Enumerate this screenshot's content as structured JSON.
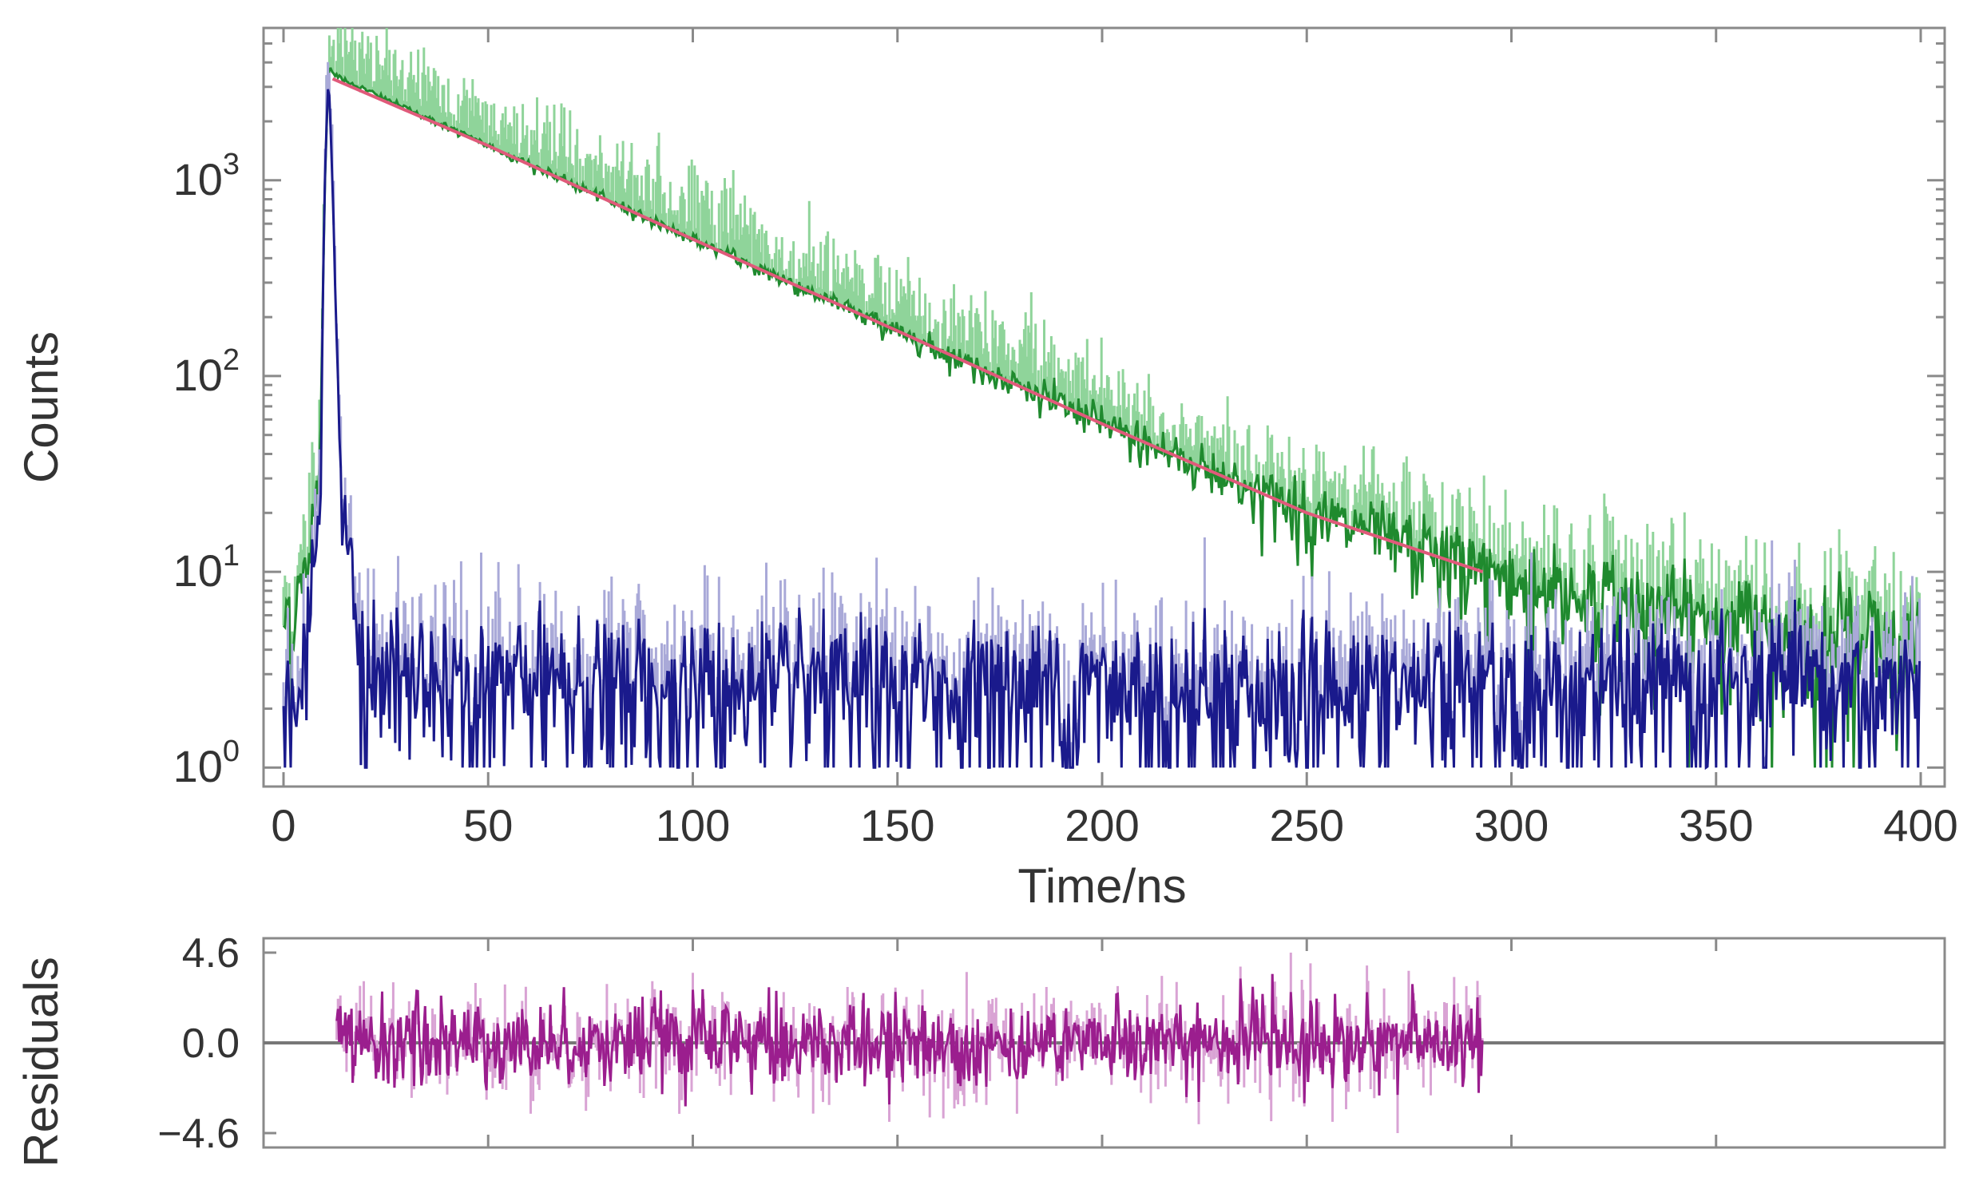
{
  "chart_data": [
    {
      "type": "line",
      "title": "",
      "xlabel": "Time/ns",
      "ylabel": "Counts",
      "yscale": "log",
      "xlim": [
        0,
        400
      ],
      "ylim": [
        0.8,
        6000
      ],
      "x_ticks": [
        0,
        50,
        100,
        150,
        200,
        250,
        300,
        350,
        400
      ],
      "x_tick_labels": [
        "0",
        "50",
        "100",
        "150",
        "200",
        "250",
        "300",
        "350",
        "400"
      ],
      "y_ticks": [
        1,
        10,
        100,
        1000
      ],
      "y_tick_labels": [
        {
          "base": "10",
          "exp": "0"
        },
        {
          "base": "10",
          "exp": "1"
        },
        {
          "base": "10",
          "exp": "2"
        },
        {
          "base": "10",
          "exp": "3"
        }
      ],
      "grid": false,
      "series": [
        {
          "role": "decay",
          "color": "#1f8a2e",
          "x": [
            0,
            5,
            9,
            10,
            11,
            12,
            14,
            20,
            50,
            100,
            150,
            200,
            250,
            300,
            350,
            400
          ],
          "y": [
            6,
            8,
            40,
            800,
            3800,
            3600,
            3300,
            2900,
            1500,
            500,
            170,
            57,
            20,
            9,
            5.5,
            4.5
          ]
        },
        {
          "role": "instrument response",
          "color": "#1a1a8c",
          "x": [
            0,
            5,
            9,
            10,
            11,
            12,
            14,
            20,
            100,
            200,
            300,
            400
          ],
          "y": [
            2.5,
            3,
            20,
            900,
            3600,
            900,
            25,
            3,
            2.5,
            2.5,
            2.5,
            2.5
          ]
        },
        {
          "role": "fit",
          "color": "#e05a7a",
          "x": [
            12,
            50,
            100,
            150,
            200,
            250,
            293
          ],
          "y": [
            3300,
            1500,
            500,
            170,
            57,
            20,
            10
          ]
        }
      ]
    },
    {
      "type": "line",
      "title": "",
      "xlabel": "",
      "ylabel": "Residuals",
      "xlim": [
        0,
        400
      ],
      "ylim": [
        -4.6,
        4.6
      ],
      "x_ticks": [
        50,
        100,
        150,
        200,
        250,
        300,
        350
      ],
      "y_ticks": [
        4.6,
        0.0,
        -4.6
      ],
      "y_tick_labels": [
        "4.6",
        "0.0",
        "−4.6"
      ],
      "grid": false,
      "series": [
        {
          "role": "residuals",
          "color": "#9b1e8e",
          "x": [
            13,
            293
          ],
          "y_range": [
            -4.6,
            4.6
          ]
        }
      ]
    }
  ]
}
